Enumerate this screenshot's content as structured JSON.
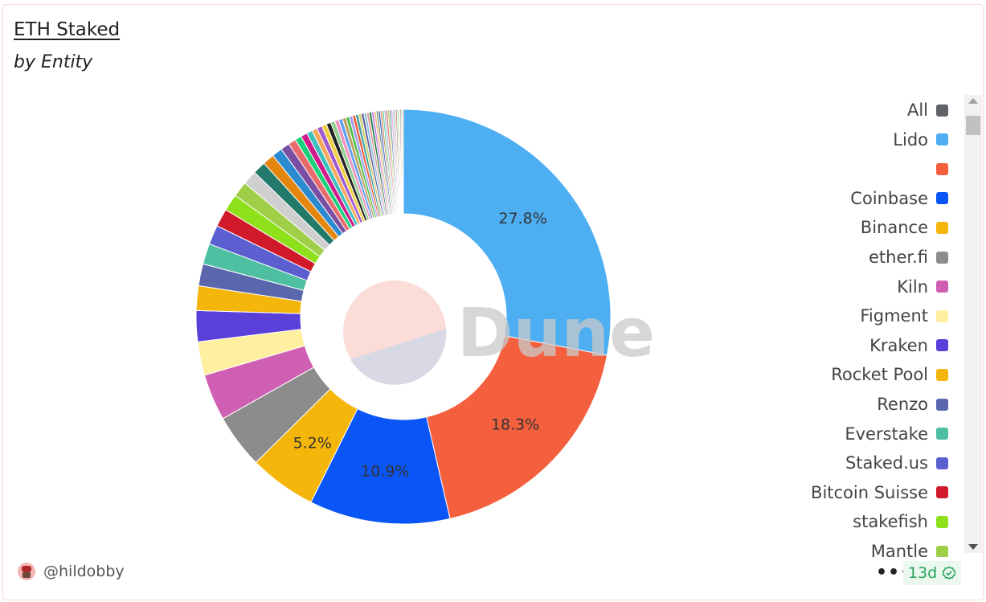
{
  "header": {
    "title": "ETH Staked",
    "subtitle": "by Entity"
  },
  "watermark": "Dune",
  "footer": {
    "username": "@hildobby",
    "more_label": "•••",
    "age": "13d"
  },
  "legend": {
    "items": [
      {
        "label": "All",
        "color": "#5f6368"
      },
      {
        "label": "Lido",
        "color": "#4daef2"
      },
      {
        "label": "",
        "color": "#f45f3e"
      },
      {
        "label": "Coinbase",
        "color": "#0a55f5"
      },
      {
        "label": "Binance",
        "color": "#f5b60b"
      },
      {
        "label": "ether.fi",
        "color": "#8c8c8c"
      },
      {
        "label": "Kiln",
        "color": "#cf5fb3"
      },
      {
        "label": "Figment",
        "color": "#fff0a0"
      },
      {
        "label": "Kraken",
        "color": "#5a3fd9"
      },
      {
        "label": "Rocket Pool",
        "color": "#f5b60b"
      },
      {
        "label": "Renzo",
        "color": "#5b67ad"
      },
      {
        "label": "Everstake",
        "color": "#4fbfa1"
      },
      {
        "label": "Staked.us",
        "color": "#5b5fd0"
      },
      {
        "label": "Bitcoin Suisse",
        "color": "#d01a2a"
      },
      {
        "label": "stakefish",
        "color": "#8ee01a"
      },
      {
        "label": "Mantle",
        "color": "#9fcf48"
      }
    ]
  },
  "chart_data": {
    "type": "pie",
    "title": "ETH Staked",
    "subtitle": "by Entity",
    "slices": [
      {
        "name": "Lido",
        "value": 27.8,
        "color": "#4daef2",
        "label": "27.8%"
      },
      {
        "name": "",
        "value": 18.3,
        "color": "#f45f3e",
        "label": "18.3%"
      },
      {
        "name": "Coinbase",
        "value": 10.9,
        "color": "#0a55f5",
        "label": "10.9%"
      },
      {
        "name": "Binance",
        "value": 5.2,
        "color": "#f5b60b",
        "label": "5.2%"
      },
      {
        "name": "ether.fi",
        "value": 4.2,
        "color": "#8c8c8c",
        "label": ""
      },
      {
        "name": "Kiln",
        "value": 3.6,
        "color": "#cf5fb3",
        "label": ""
      },
      {
        "name": "Figment",
        "value": 2.6,
        "color": "#fff0a0",
        "label": ""
      },
      {
        "name": "Kraken",
        "value": 2.4,
        "color": "#5a3fd9",
        "label": ""
      },
      {
        "name": "Rocket Pool",
        "value": 1.9,
        "color": "#f5b60b",
        "label": ""
      },
      {
        "name": "Renzo",
        "value": 1.7,
        "color": "#5b67ad",
        "label": ""
      },
      {
        "name": "Everstake",
        "value": 1.6,
        "color": "#4fbfa1",
        "label": ""
      },
      {
        "name": "Staked.us",
        "value": 1.5,
        "color": "#5b5fd0",
        "label": ""
      },
      {
        "name": "Bitcoin Suisse",
        "value": 1.4,
        "color": "#d01a2a",
        "label": ""
      },
      {
        "name": "stakefish",
        "value": 1.3,
        "color": "#8ee01a",
        "label": ""
      },
      {
        "name": "Mantle",
        "value": 1.2,
        "color": "#9fcf48",
        "label": ""
      },
      {
        "name": "",
        "value": 1.1,
        "color": "#cfcfcf",
        "label": ""
      },
      {
        "name": "",
        "value": 1.0,
        "color": "#237a6b",
        "label": ""
      },
      {
        "name": "",
        "value": 0.9,
        "color": "#e5860f",
        "label": ""
      },
      {
        "name": "",
        "value": 0.8,
        "color": "#2c8ad0",
        "label": ""
      },
      {
        "name": "",
        "value": 0.7,
        "color": "#7a4fa3",
        "label": ""
      },
      {
        "name": "",
        "value": 0.6,
        "color": "#e86a6a",
        "label": ""
      },
      {
        "name": "",
        "value": 0.5,
        "color": "#1ad07a",
        "label": ""
      },
      {
        "name": "",
        "value": 0.5,
        "color": "#d01a8a",
        "label": ""
      },
      {
        "name": "",
        "value": 0.45,
        "color": "#3fc0c0",
        "label": ""
      },
      {
        "name": "",
        "value": 0.42,
        "color": "#f5a85a",
        "label": ""
      },
      {
        "name": "",
        "value": 0.4,
        "color": "#a05ad0",
        "label": ""
      },
      {
        "name": "",
        "value": 0.38,
        "color": "#f0d040",
        "label": ""
      },
      {
        "name": "",
        "value": 0.35,
        "color": "#222222",
        "label": ""
      },
      {
        "name": "",
        "value": 0.33,
        "color": "#8fd08f",
        "label": ""
      },
      {
        "name": "",
        "value": 0.31,
        "color": "#f090c0",
        "label": ""
      },
      {
        "name": "",
        "value": 0.3,
        "color": "#60a0f0",
        "label": ""
      },
      {
        "name": "",
        "value": 0.28,
        "color": "#c0a060",
        "label": ""
      },
      {
        "name": "",
        "value": 0.26,
        "color": "#50c050",
        "label": ""
      },
      {
        "name": "",
        "value": 0.25,
        "color": "#a0a0f0",
        "label": ""
      },
      {
        "name": "",
        "value": 0.24,
        "color": "#f06040",
        "label": ""
      },
      {
        "name": "",
        "value": 0.23,
        "color": "#40a0a0",
        "label": ""
      },
      {
        "name": "",
        "value": 0.22,
        "color": "#d0d070",
        "label": ""
      },
      {
        "name": "",
        "value": 0.21,
        "color": "#6060a0",
        "label": ""
      },
      {
        "name": "",
        "value": 0.2,
        "color": "#90c0e0",
        "label": ""
      },
      {
        "name": "",
        "value": 0.2,
        "color": "#e0a0a0",
        "label": ""
      },
      {
        "name": "",
        "value": 0.19,
        "color": "#208040",
        "label": ""
      },
      {
        "name": "",
        "value": 0.18,
        "color": "#c080f0",
        "label": ""
      },
      {
        "name": "",
        "value": 0.17,
        "color": "#f0c080",
        "label": ""
      },
      {
        "name": "",
        "value": 0.16,
        "color": "#80a080",
        "label": ""
      },
      {
        "name": "",
        "value": 0.16,
        "color": "#4a6ad0",
        "label": ""
      },
      {
        "name": "",
        "value": 0.15,
        "color": "#d09050",
        "label": ""
      },
      {
        "name": "",
        "value": 0.15,
        "color": "#70d0b0",
        "label": ""
      },
      {
        "name": "",
        "value": 0.14,
        "color": "#b0b0b0",
        "label": ""
      },
      {
        "name": "",
        "value": 0.14,
        "color": "#e06080",
        "label": ""
      },
      {
        "name": "",
        "value": 0.13,
        "color": "#a0d040",
        "label": ""
      },
      {
        "name": "",
        "value": 0.13,
        "color": "#5080b0",
        "label": ""
      },
      {
        "name": "",
        "value": 0.12,
        "color": "#f0a0d0",
        "label": ""
      },
      {
        "name": "",
        "value": 0.12,
        "color": "#90b0d0",
        "label": ""
      },
      {
        "name": "",
        "value": 0.11,
        "color": "#d0b090",
        "label": ""
      },
      {
        "name": "",
        "value": 0.11,
        "color": "#b07050",
        "label": ""
      },
      {
        "name": "",
        "value": 0.1,
        "color": "#60c0e0",
        "label": ""
      },
      {
        "name": "",
        "value": 0.1,
        "color": "#e0e060",
        "label": ""
      },
      {
        "name": "",
        "value": 0.1,
        "color": "#a060a0",
        "label": ""
      },
      {
        "name": "",
        "value": 0.09,
        "color": "#70e070",
        "label": ""
      },
      {
        "name": "",
        "value": 0.09,
        "color": "#e08040",
        "label": ""
      }
    ]
  }
}
